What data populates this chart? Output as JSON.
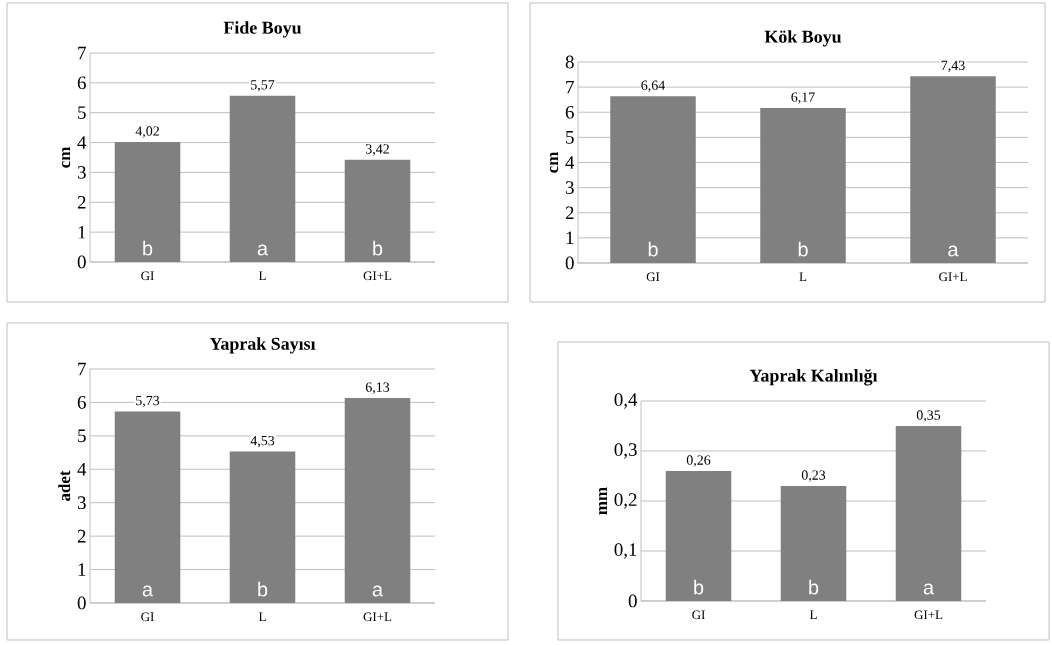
{
  "chart_data": [
    {
      "type": "bar",
      "title": "Fide Boyu",
      "ylabel": "cm",
      "categories": [
        "GI",
        "L",
        "GI+L"
      ],
      "values": [
        4.02,
        5.57,
        3.42
      ],
      "value_labels": [
        "4,02",
        "5,57",
        "3,42"
      ],
      "color": "#808080",
      "ylim": [
        0,
        7
      ],
      "yticks": [
        0,
        1,
        2,
        3,
        4,
        5,
        6,
        7
      ],
      "grid": "y",
      "annotations": [
        "b",
        "a",
        "b"
      ]
    },
    {
      "type": "bar",
      "title": "Kök Boyu",
      "ylabel": "cm",
      "categories": [
        "GI",
        "L",
        "GI+L"
      ],
      "values": [
        6.64,
        6.17,
        7.43
      ],
      "value_labels": [
        "6,64",
        "6,17",
        "7,43"
      ],
      "color": "#808080",
      "ylim": [
        0,
        8
      ],
      "yticks": [
        0,
        1,
        2,
        3,
        4,
        5,
        6,
        7,
        8
      ],
      "grid": "y",
      "annotations": [
        "b",
        "b",
        "a"
      ]
    },
    {
      "type": "bar",
      "title": "Yaprak Sayısı",
      "ylabel": "adet",
      "categories": [
        "GI",
        "L",
        "GI+L"
      ],
      "values": [
        5.73,
        4.53,
        6.13
      ],
      "value_labels": [
        "5,73",
        "4,53",
        "6,13"
      ],
      "color": "#808080",
      "ylim": [
        0,
        7
      ],
      "yticks": [
        0,
        1,
        2,
        3,
        4,
        5,
        6,
        7
      ],
      "grid": "y",
      "annotations": [
        "a",
        "b",
        "a"
      ]
    },
    {
      "type": "bar",
      "title": "Yaprak Kalınlığı",
      "ylabel": "mm",
      "categories": [
        "GI",
        "L",
        "GI+L"
      ],
      "values": [
        0.26,
        0.23,
        0.35
      ],
      "value_labels": [
        "0,26",
        "0,23",
        "0,35"
      ],
      "color": "#808080",
      "ylim": [
        0,
        0.4
      ],
      "yticks": [
        0,
        {
          "value": 0.1,
          "label": "0,1"
        },
        {
          "value": 0.2,
          "label": "0,2"
        },
        {
          "value": 0.3,
          "label": "0,3"
        },
        {
          "value": 0.4,
          "label": "0,4"
        }
      ],
      "grid": "y",
      "annotations": [
        "b",
        "b",
        "a"
      ]
    }
  ]
}
